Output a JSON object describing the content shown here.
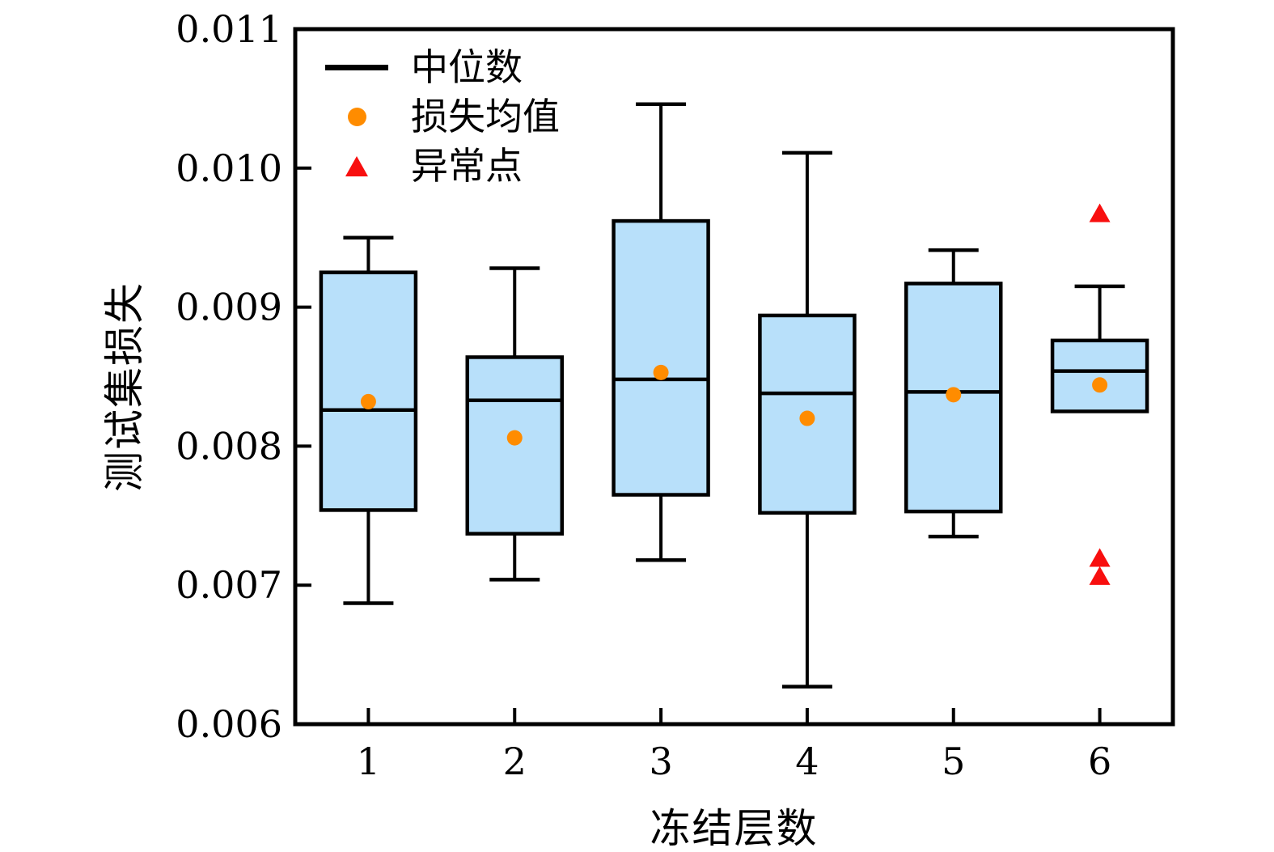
{
  "chart_data": {
    "type": "boxplot",
    "title": "",
    "xlabel": "冻结层数",
    "ylabel": "测试集损失",
    "categories": [
      "1",
      "2",
      "3",
      "4",
      "5",
      "6"
    ],
    "ylim": [
      0.006,
      0.011
    ],
    "yticks": [
      0.011,
      0.01,
      0.009,
      0.008,
      0.007,
      0.006
    ],
    "ytick_labels": [
      "0.011",
      "0.010",
      "0.009",
      "0.008",
      "0.007",
      "0.006"
    ],
    "grid": false,
    "legend_position": "upper-left",
    "legend": [
      {
        "marker": "median-line",
        "label": "中位数",
        "color": "#000000"
      },
      {
        "marker": "mean-dot",
        "label": "损失均值",
        "color": "#FF8C00"
      },
      {
        "marker": "outlier-triangle",
        "label": "异常点",
        "color": "#F80F0F"
      }
    ],
    "series": [
      {
        "category": "1",
        "whisker_low": 0.00687,
        "q1": 0.00754,
        "median": 0.00826,
        "q3": 0.00925,
        "whisker_high": 0.0095,
        "mean": 0.00832,
        "outliers": []
      },
      {
        "category": "2",
        "whisker_low": 0.00704,
        "q1": 0.00737,
        "median": 0.00833,
        "q3": 0.00864,
        "whisker_high": 0.00928,
        "mean": 0.00806,
        "outliers": []
      },
      {
        "category": "3",
        "whisker_low": 0.00718,
        "q1": 0.00765,
        "median": 0.00848,
        "q3": 0.00962,
        "whisker_high": 0.01046,
        "mean": 0.00853,
        "outliers": []
      },
      {
        "category": "4",
        "whisker_low": 0.00627,
        "q1": 0.00752,
        "median": 0.00838,
        "q3": 0.00894,
        "whisker_high": 0.01011,
        "mean": 0.0082,
        "outliers": []
      },
      {
        "category": "5",
        "whisker_low": 0.00735,
        "q1": 0.00753,
        "median": 0.00839,
        "q3": 0.00917,
        "whisker_high": 0.00941,
        "mean": 0.00837,
        "outliers": []
      },
      {
        "category": "6",
        "whisker_low": null,
        "q1": 0.00825,
        "median": 0.00854,
        "q3": 0.00876,
        "whisker_high": 0.00915,
        "mean": 0.00844,
        "outliers": [
          0.00967,
          0.00719,
          0.00706
        ]
      }
    ],
    "colors": {
      "background": "#FFFFFF",
      "box_fill": "#B8E0FA",
      "box_edge": "#000000",
      "median": "#000000",
      "mean": "#FF8C00",
      "outlier": "#F80F0F",
      "axis": "#000000"
    }
  }
}
